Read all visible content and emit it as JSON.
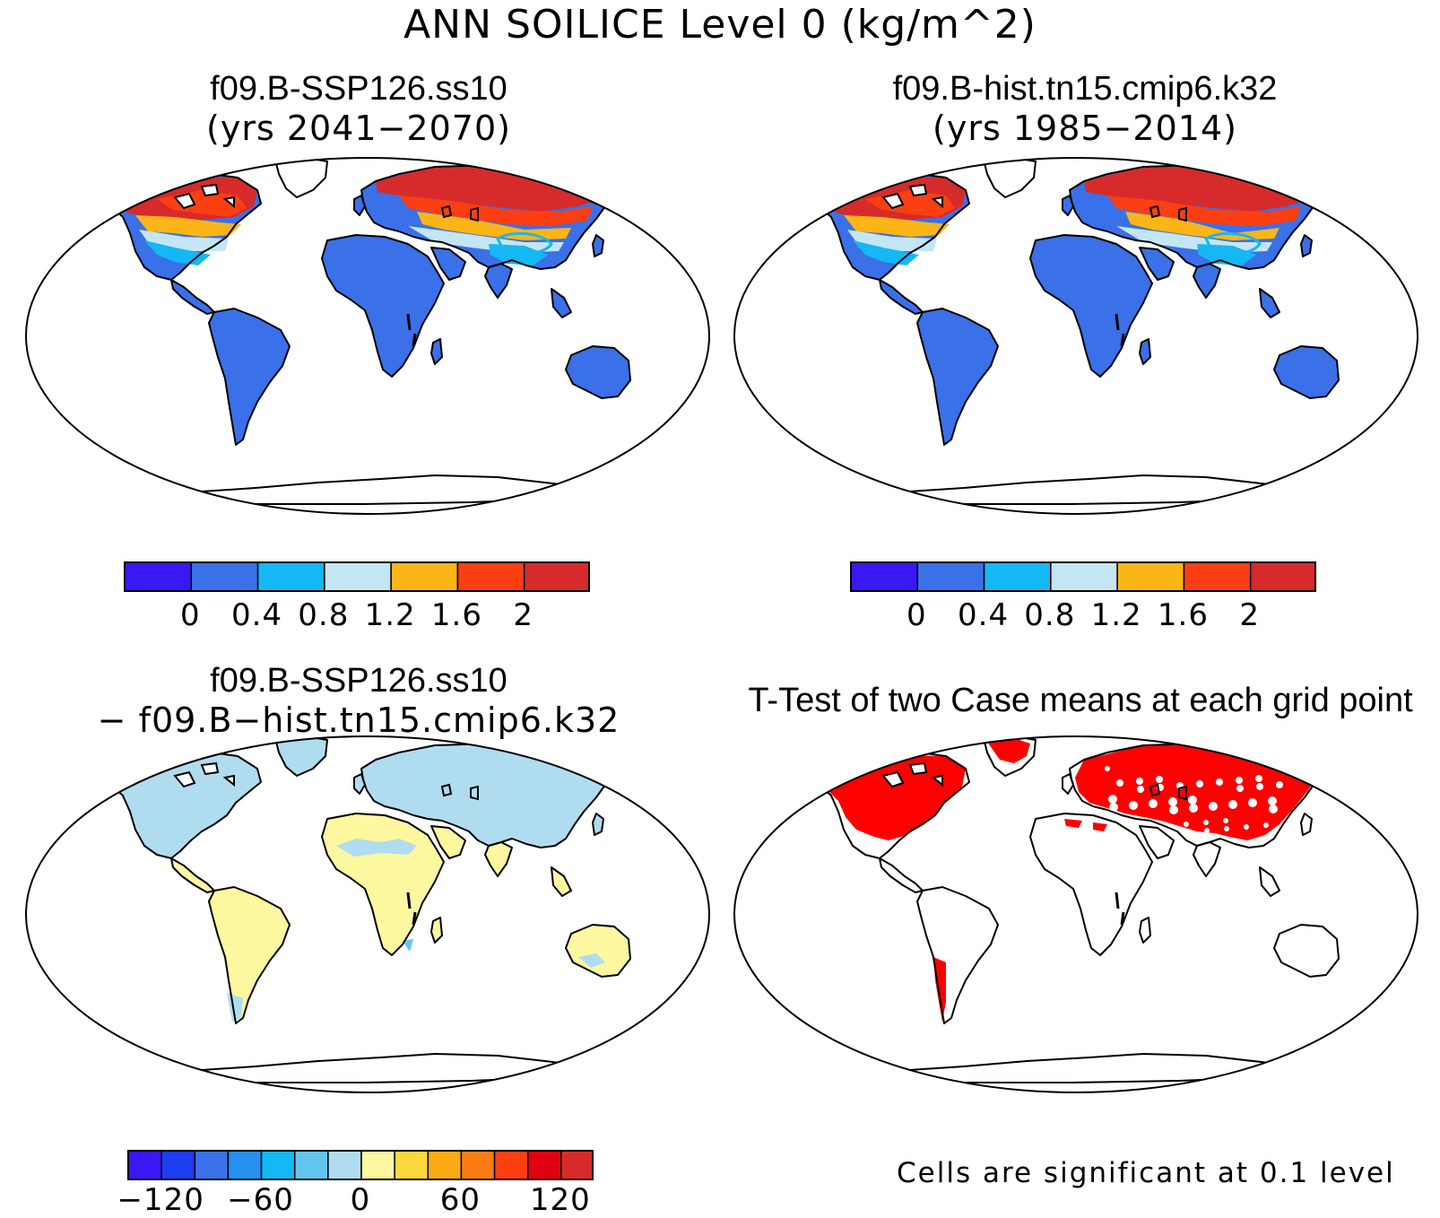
{
  "figure": {
    "title": "ANN SOILICE Level 0 (kg/m^2)"
  },
  "panels": [
    {
      "id": "case1",
      "title_line1": "f09.B-SSP126.ss10",
      "title_line2": "(yrs 2041−2070)",
      "kind": "case",
      "colorbar": {
        "colors": [
          "#3a18f4",
          "#3a70e8",
          "#14b8f4",
          "#c4e6f4",
          "#fbb516",
          "#fb3f12",
          "#d62b2a"
        ],
        "labels": [
          "0",
          "0.4",
          "0.8",
          "1.2",
          "1.6",
          "2"
        ]
      }
    },
    {
      "id": "case2",
      "title_line1": "f09.B-hist.tn15.cmip6.k32",
      "title_line2": "(yrs 1985−2014)",
      "kind": "case",
      "colorbar": {
        "colors": [
          "#3a18f4",
          "#3a70e8",
          "#14b8f4",
          "#c4e6f4",
          "#fbb516",
          "#fb3f12",
          "#d62b2a"
        ],
        "labels": [
          "0",
          "0.4",
          "0.8",
          "1.2",
          "1.6",
          "2"
        ]
      }
    },
    {
      "id": "diff",
      "title_line1": "f09.B-SSP126.ss10",
      "title_line2": "− f09.B−hist.tn15.cmip6.k32",
      "kind": "difference",
      "colorbar": {
        "colors": [
          "#3a18f4",
          "#1e3cf0",
          "#3a70e8",
          "#2590f0",
          "#14b8f4",
          "#64c4f0",
          "#b0dcf0",
          "#fdf7a0",
          "#fdd83c",
          "#fbaa14",
          "#fb7c14",
          "#fb3f12",
          "#e00010",
          "#d62b2a"
        ],
        "labels": [
          "−120",
          "−60",
          "0",
          "60",
          "120"
        ]
      }
    },
    {
      "id": "ttest",
      "title_line1": "T-Test of two Case means at each grid point",
      "kind": "significance",
      "note": "Cells are significant at 0.1 level"
    }
  ],
  "map_colors": {
    "ocean": "#ffffff",
    "coast": "#000000",
    "significant": "#ff0000"
  }
}
